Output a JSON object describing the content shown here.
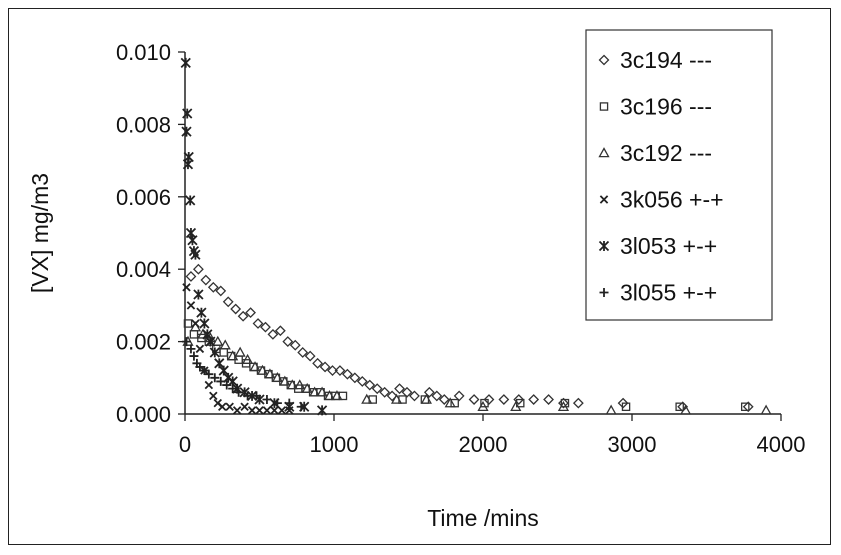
{
  "chart_data": {
    "type": "scatter",
    "xlabel": "Time /mins",
    "ylabel": "[VX] mg/m3",
    "xlim": [
      0,
      4000
    ],
    "ylim": [
      0,
      0.01
    ],
    "x_ticks": [
      "0",
      "1000",
      "2000",
      "3000",
      "4000"
    ],
    "y_ticks": [
      "0.000",
      "0.002",
      "0.004",
      "0.006",
      "0.008",
      "0.010"
    ],
    "grid": false,
    "legend_position": "top-right",
    "series": [
      {
        "name": "3c194 ---",
        "marker": "diamond",
        "points": [
          [
            40,
            0.0038
          ],
          [
            90,
            0.004
          ],
          [
            140,
            0.0037
          ],
          [
            190,
            0.0035
          ],
          [
            240,
            0.0034
          ],
          [
            290,
            0.0031
          ],
          [
            340,
            0.0029
          ],
          [
            390,
            0.0027
          ],
          [
            440,
            0.0028
          ],
          [
            490,
            0.0025
          ],
          [
            540,
            0.0024
          ],
          [
            590,
            0.0022
          ],
          [
            640,
            0.0023
          ],
          [
            690,
            0.002
          ],
          [
            740,
            0.0019
          ],
          [
            790,
            0.0017
          ],
          [
            840,
            0.0016
          ],
          [
            890,
            0.0014
          ],
          [
            940,
            0.0013
          ],
          [
            990,
            0.0012
          ],
          [
            1040,
            0.0012
          ],
          [
            1090,
            0.0011
          ],
          [
            1140,
            0.001
          ],
          [
            1190,
            0.0009
          ],
          [
            1240,
            0.0008
          ],
          [
            1290,
            0.0007
          ],
          [
            1340,
            0.0006
          ],
          [
            1390,
            0.0005
          ],
          [
            1440,
            0.0007
          ],
          [
            1490,
            0.0006
          ],
          [
            1540,
            0.0005
          ],
          [
            1640,
            0.0006
          ],
          [
            1690,
            0.0005
          ],
          [
            1740,
            0.0004
          ],
          [
            1840,
            0.0005
          ],
          [
            1940,
            0.0004
          ],
          [
            2040,
            0.0004
          ],
          [
            2140,
            0.0004
          ],
          [
            2240,
            0.0004
          ],
          [
            2340,
            0.0004
          ],
          [
            2440,
            0.0004
          ],
          [
            2540,
            0.0003
          ],
          [
            2640,
            0.0003
          ],
          [
            2940,
            0.0003
          ],
          [
            3340,
            0.0002
          ],
          [
            3780,
            0.0002
          ]
        ]
      },
      {
        "name": "3c196 ---",
        "marker": "square",
        "points": [
          [
            20,
            0.0025
          ],
          [
            60,
            0.0022
          ],
          [
            110,
            0.0021
          ],
          [
            160,
            0.002
          ],
          [
            210,
            0.0018
          ],
          [
            260,
            0.0017
          ],
          [
            310,
            0.0016
          ],
          [
            360,
            0.0015
          ],
          [
            410,
            0.0014
          ],
          [
            460,
            0.0013
          ],
          [
            510,
            0.0012
          ],
          [
            560,
            0.0011
          ],
          [
            610,
            0.001
          ],
          [
            660,
            0.0009
          ],
          [
            710,
            0.0008
          ],
          [
            760,
            0.0007
          ],
          [
            810,
            0.0007
          ],
          [
            860,
            0.0006
          ],
          [
            910,
            0.0006
          ],
          [
            960,
            0.0005
          ],
          [
            1010,
            0.0005
          ],
          [
            1060,
            0.0005
          ],
          [
            1260,
            0.0004
          ],
          [
            1460,
            0.0004
          ],
          [
            1610,
            0.0004
          ],
          [
            1810,
            0.0003
          ],
          [
            2010,
            0.0003
          ],
          [
            2250,
            0.0003
          ],
          [
            2550,
            0.0003
          ],
          [
            2960,
            0.0002
          ],
          [
            3320,
            0.0002
          ],
          [
            3760,
            0.0002
          ]
        ]
      },
      {
        "name": "3c192 ---",
        "marker": "triangle",
        "points": [
          [
            20,
            0.002
          ],
          [
            70,
            0.0024
          ],
          [
            120,
            0.0022
          ],
          [
            170,
            0.0021
          ],
          [
            220,
            0.002
          ],
          [
            270,
            0.0019
          ],
          [
            320,
            0.0016
          ],
          [
            370,
            0.0017
          ],
          [
            420,
            0.0015
          ],
          [
            470,
            0.0013
          ],
          [
            520,
            0.0012
          ],
          [
            570,
            0.0011
          ],
          [
            620,
            0.001
          ],
          [
            670,
            0.0009
          ],
          [
            720,
            0.0008
          ],
          [
            770,
            0.0008
          ],
          [
            820,
            0.0007
          ],
          [
            870,
            0.0006
          ],
          [
            920,
            0.0006
          ],
          [
            970,
            0.0005
          ],
          [
            1020,
            0.0005
          ],
          [
            1220,
            0.0004
          ],
          [
            1420,
            0.0004
          ],
          [
            1620,
            0.0004
          ],
          [
            1780,
            0.0003
          ],
          [
            2000,
            0.0002
          ],
          [
            2220,
            0.0002
          ],
          [
            2540,
            0.0002
          ],
          [
            2860,
            0.0001
          ],
          [
            3360,
            0.0001
          ],
          [
            3900,
            0.0001
          ]
        ]
      },
      {
        "name": "3k056 +-+",
        "marker": "x",
        "points": [
          [
            10,
            0.0035
          ],
          [
            40,
            0.003
          ],
          [
            70,
            0.0025
          ],
          [
            100,
            0.0018
          ],
          [
            130,
            0.0012
          ],
          [
            160,
            0.0008
          ],
          [
            190,
            0.0005
          ],
          [
            220,
            0.0003
          ],
          [
            250,
            0.0002
          ],
          [
            300,
            0.0002
          ],
          [
            350,
            0.0001
          ],
          [
            400,
            0.0002
          ],
          [
            450,
            0.0001
          ],
          [
            500,
            0.0001
          ],
          [
            550,
            0.0001
          ],
          [
            600,
            0.0001
          ],
          [
            650,
            0.0001
          ],
          [
            700,
            0.0001
          ]
        ]
      },
      {
        "name": "3l053 +-+",
        "marker": "asterisk",
        "points": [
          [
            5,
            0.0097
          ],
          [
            15,
            0.0083
          ],
          [
            10,
            0.0078
          ],
          [
            25,
            0.0071
          ],
          [
            20,
            0.0069
          ],
          [
            35,
            0.0059
          ],
          [
            40,
            0.005
          ],
          [
            50,
            0.0048
          ],
          [
            60,
            0.0045
          ],
          [
            70,
            0.0044
          ],
          [
            90,
            0.0033
          ],
          [
            110,
            0.0028
          ],
          [
            130,
            0.0025
          ],
          [
            150,
            0.0022
          ],
          [
            170,
            0.002
          ],
          [
            200,
            0.0017
          ],
          [
            230,
            0.0014
          ],
          [
            260,
            0.0012
          ],
          [
            290,
            0.001
          ],
          [
            320,
            0.0009
          ],
          [
            350,
            0.0007
          ],
          [
            400,
            0.0006
          ],
          [
            450,
            0.0005
          ],
          [
            500,
            0.0004
          ],
          [
            600,
            0.0003
          ],
          [
            700,
            0.0002
          ],
          [
            800,
            0.0002
          ],
          [
            920,
            0.0001
          ]
        ]
      },
      {
        "name": "3l055 +-+",
        "marker": "plus",
        "points": [
          [
            10,
            0.002
          ],
          [
            40,
            0.0018
          ],
          [
            60,
            0.0016
          ],
          [
            80,
            0.0014
          ],
          [
            100,
            0.0013
          ],
          [
            130,
            0.0012
          ],
          [
            160,
            0.0011
          ],
          [
            200,
            0.001
          ],
          [
            240,
            0.0009
          ],
          [
            280,
            0.0008
          ],
          [
            320,
            0.0007
          ],
          [
            360,
            0.0006
          ],
          [
            420,
            0.0005
          ],
          [
            480,
            0.0005
          ],
          [
            550,
            0.0004
          ],
          [
            620,
            0.0003
          ],
          [
            700,
            0.0003
          ],
          [
            780,
            0.0002
          ]
        ]
      }
    ]
  }
}
